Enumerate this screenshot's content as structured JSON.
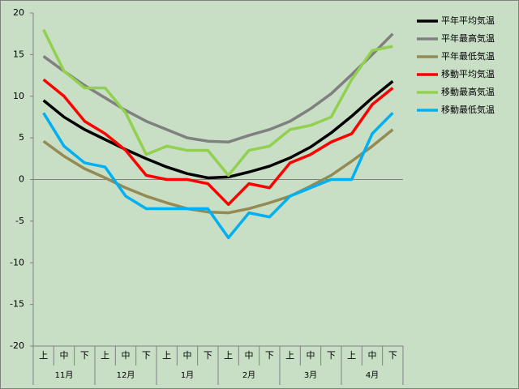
{
  "chart_data": {
    "type": "line",
    "categories": [
      "上",
      "中",
      "下",
      "上",
      "中",
      "下",
      "上",
      "中",
      "下",
      "上",
      "中",
      "下",
      "上",
      "中",
      "下",
      "上",
      "中",
      "下"
    ],
    "months": [
      "11月",
      "12月",
      "1月",
      "2月",
      "3月",
      "4月"
    ],
    "ylim": [
      -20,
      20
    ],
    "yticks": [
      -20,
      -15,
      -10,
      -5,
      0,
      5,
      10,
      15,
      20
    ],
    "legend": "right",
    "series": [
      {
        "name": "平年平均気温",
        "color": "#000000",
        "values": [
          9.5,
          7.5,
          6,
          4.8,
          3.6,
          2.5,
          1.5,
          0.7,
          0.2,
          0.3,
          0.9,
          1.6,
          2.6,
          3.9,
          5.6,
          7.6,
          9.8,
          11.8
        ]
      },
      {
        "name": "平年最高気温",
        "color": "#808080",
        "values": [
          14.8,
          13,
          11.3,
          9.8,
          8.3,
          7,
          6,
          5,
          4.6,
          4.5,
          5.3,
          6,
          7,
          8.5,
          10.3,
          12.6,
          15,
          17.5
        ]
      },
      {
        "name": "平年最低気温",
        "color": "#948a54",
        "values": [
          4.6,
          2.8,
          1.3,
          0.2,
          -1,
          -2,
          -2.8,
          -3.5,
          -3.9,
          -4,
          -3.5,
          -2.8,
          -2,
          -0.8,
          0.5,
          2.2,
          4,
          6
        ]
      },
      {
        "name": "移動平均気温",
        "color": "#ff0000",
        "values": [
          12,
          10,
          7,
          5.5,
          3.5,
          0.5,
          0,
          0,
          -0.5,
          -3,
          -0.5,
          -1,
          2,
          3,
          4.5,
          5.5,
          9,
          11
        ]
      },
      {
        "name": "移動最高気温",
        "color": "#92d050",
        "values": [
          18,
          13,
          11,
          11,
          8,
          3,
          4,
          3.5,
          3.5,
          0.5,
          3.5,
          4,
          6,
          6.5,
          7.5,
          12,
          15.5,
          16
        ]
      },
      {
        "name": "移動最低気温",
        "color": "#00b0f0",
        "values": [
          8,
          4,
          2,
          1.5,
          -2,
          -3.5,
          -3.5,
          -3.5,
          -3.5,
          -7,
          -4,
          -4.5,
          -2,
          -1,
          0,
          0,
          5.5,
          8
        ]
      }
    ]
  }
}
